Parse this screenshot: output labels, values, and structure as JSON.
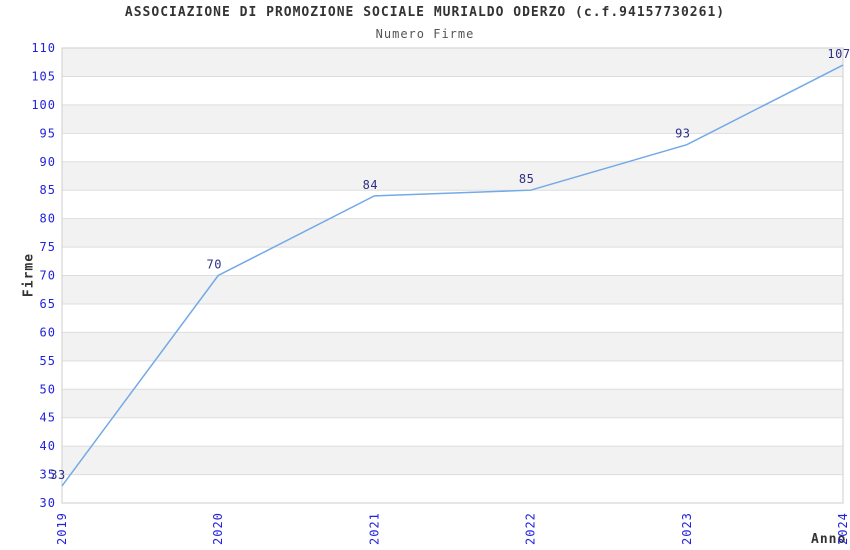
{
  "title": "ASSOCIAZIONE DI PROMOZIONE SOCIALE MURIALDO ODERZO (c.f.94157730261)",
  "subtitle": "Numero Firme",
  "chart_data": {
    "type": "line",
    "categories": [
      "2019",
      "2020",
      "2021",
      "2022",
      "2023",
      "2024"
    ],
    "values": [
      33,
      70,
      84,
      85,
      93,
      107
    ],
    "point_labels": [
      "33",
      "70",
      "84",
      "85",
      "93",
      "107"
    ],
    "xlabel": "Anno",
    "ylabel": "Firme",
    "ylim": [
      30,
      110
    ],
    "ytick_step": 5,
    "ytick_labels": [
      "30",
      "35",
      "40",
      "45",
      "50",
      "55",
      "60",
      "65",
      "70",
      "75",
      "80",
      "85",
      "90",
      "95",
      "100",
      "105",
      "110"
    ],
    "grid": "horizontal gridlines with alternating shaded bands",
    "legend_position": "none",
    "colors": {
      "line": "#74A9E7",
      "tick_labels": "#2222DD",
      "point_labels": "#2E2E85",
      "band_shaded": "#F2F2F2",
      "band_plain": "#FFFFFF",
      "gridline": "#DDDDDD",
      "plot_border": "#D6D6D6",
      "title_text": "#333333",
      "subtitle_text": "#555555"
    }
  }
}
